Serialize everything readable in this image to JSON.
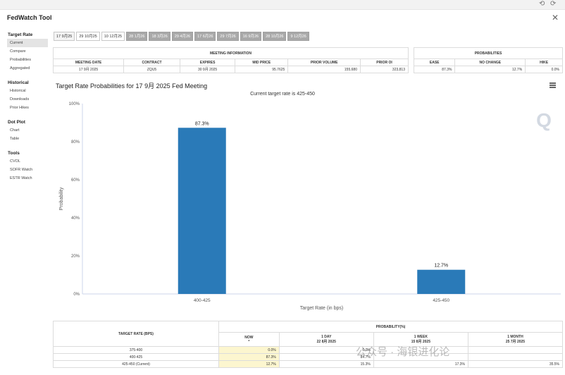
{
  "app": {
    "title": "FedWatch Tool"
  },
  "sidebar": [
    {
      "heading": "Target Rate",
      "items": [
        "Current",
        "Compare",
        "Probabilities",
        "Aggregated"
      ]
    },
    {
      "heading": "Historical",
      "items": [
        "Historical",
        "Downloads",
        "Prior Hikes"
      ]
    },
    {
      "heading": "Dot Plot",
      "items": [
        "Chart",
        "Table"
      ]
    },
    {
      "heading": "Tools",
      "items": [
        "CVOL",
        "SOFR Watch",
        "ESTR Watch"
      ]
    }
  ],
  "tabs": [
    "17 9月25",
    "29 10月25",
    "10 12月25",
    "28 1月26",
    "18 3月26",
    "29 4月26",
    "17 6月26",
    "29 7月26",
    "16 9月26",
    "28 10月26",
    "9 12月26"
  ],
  "meeting_info": {
    "title": "MEETING INFORMATION",
    "headers": [
      "MEETING DATE",
      "CONTRACT",
      "EXPIRES",
      "MID PRICE",
      "PRIOR VOLUME",
      "PRIOR OI"
    ],
    "row": [
      "17 9月 2025",
      "ZQU5",
      "30 9月 2025",
      "95.7625",
      "155,680",
      "323,813"
    ]
  },
  "probabilities": {
    "title": "PROBABILITIES",
    "headers": [
      "EASE",
      "NO CHANGE",
      "HIKE"
    ],
    "row": [
      "87.3%",
      "12.7%",
      "0.0%"
    ]
  },
  "chart": {
    "title": "Target Rate Probabilities for 17 9月 2025 Fed Meeting"
  },
  "chart_data": {
    "type": "bar",
    "subtitle": "Current target rate is 425-450",
    "categories": [
      "400-425",
      "425-450"
    ],
    "values": [
      87.3,
      12.7
    ],
    "value_labels": [
      "87.3%",
      "12.7%"
    ],
    "xlabel": "Target Rate (in bps)",
    "ylabel": "Probability",
    "ylim": [
      0,
      100
    ],
    "yticks": [
      0,
      20,
      40,
      60,
      80,
      100
    ],
    "ytick_labels": [
      "0%",
      "20%",
      "40%",
      "60%",
      "80%",
      "100%"
    ],
    "bar_color": "#2a7ab8",
    "grid": false
  },
  "bottom_table": {
    "col1_header": "TARGET RATE (BPS)",
    "group_header": "PROBABILITY(%)",
    "cols": [
      {
        "label": "NOW",
        "sub": "*"
      },
      {
        "label": "1 DAY",
        "sub": "22 8月 2025"
      },
      {
        "label": "1 WEEK",
        "sub": "15 8月 2025"
      },
      {
        "label": "1 MONTH",
        "sub": "25 7月 2025"
      }
    ],
    "rows": [
      {
        "rate": "375-400",
        "vals": [
          "0.0%",
          "0.0%",
          "",
          ""
        ]
      },
      {
        "rate": "400-425",
        "vals": [
          "87.3%",
          "84.7%",
          "",
          ""
        ]
      },
      {
        "rate": "425-450 (Current)",
        "vals": [
          "12.7%",
          "15.3%",
          "17.3%",
          "35.5%"
        ]
      }
    ]
  },
  "watermark": "公众号 · 海银进化论"
}
